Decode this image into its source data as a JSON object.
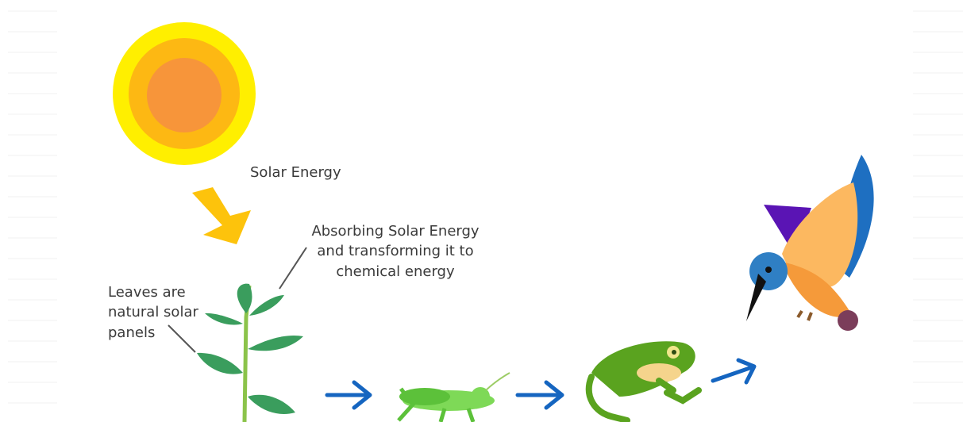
{
  "labels": {
    "solar_energy": "Solar Energy",
    "absorbing": [
      "Absorbing Solar Energy",
      "and transforming it to",
      "chemical energy"
    ],
    "leaves": [
      "Leaves are",
      "natural solar",
      "panels"
    ]
  }
}
